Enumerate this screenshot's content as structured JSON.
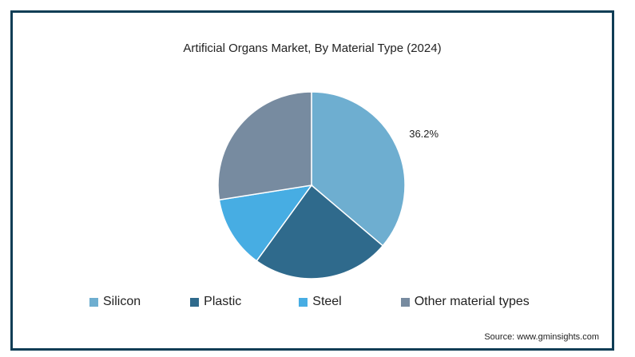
{
  "chart_data": {
    "type": "pie",
    "title": "Artificial Organs Market, By Material Type (2024)",
    "slices": [
      {
        "name": "Silicon",
        "value": 36.2,
        "color": "#6eaed0",
        "label": "36.2%"
      },
      {
        "name": "Plastic",
        "value": 23.8,
        "color": "#2f6a8c",
        "label": ""
      },
      {
        "name": "Steel",
        "value": 12.5,
        "color": "#47ade3",
        "label": ""
      },
      {
        "name": "Other material types",
        "value": 27.5,
        "color": "#778ba0",
        "label": ""
      }
    ],
    "legend_position": "bottom"
  },
  "source": "Source: www.gminsights.com"
}
